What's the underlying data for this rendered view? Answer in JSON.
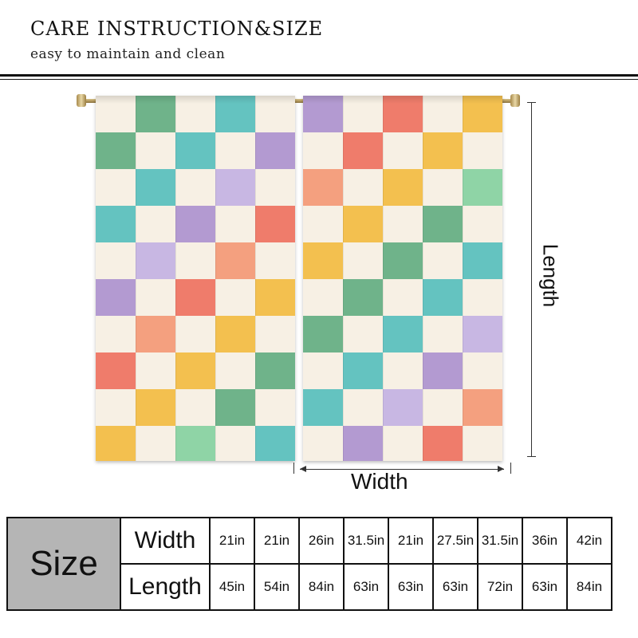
{
  "header": {
    "title": "CARE INSTRUCTION&SIZE",
    "subtitle": "easy to maintain and clean"
  },
  "colors": {
    "cream": "#f7f0e4",
    "green": "#6fb38a",
    "teal": "#64c3c0",
    "purple": "#b39ad1",
    "coral": "#ef7c6b",
    "peach": "#f4a07f",
    "yellow": "#f3c04f",
    "lavender": "#c8b7e3",
    "mint": "#8fd4a6"
  },
  "curtains": [
    {
      "panel": "left",
      "rows": [
        [
          "cream",
          "green",
          "cream",
          "teal",
          "cream"
        ],
        [
          "green",
          "cream",
          "teal",
          "cream",
          "purple"
        ],
        [
          "cream",
          "teal",
          "cream",
          "lavender",
          "cream"
        ],
        [
          "teal",
          "cream",
          "purple",
          "cream",
          "coral"
        ],
        [
          "cream",
          "lavender",
          "cream",
          "peach",
          "cream"
        ],
        [
          "purple",
          "cream",
          "coral",
          "cream",
          "yellow"
        ],
        [
          "cream",
          "peach",
          "cream",
          "yellow",
          "cream"
        ],
        [
          "coral",
          "cream",
          "yellow",
          "cream",
          "green"
        ],
        [
          "cream",
          "yellow",
          "cream",
          "green",
          "cream"
        ],
        [
          "yellow",
          "cream",
          "mint",
          "cream",
          "teal"
        ]
      ]
    },
    {
      "panel": "right",
      "rows": [
        [
          "purple",
          "cream",
          "coral",
          "cream",
          "yellow"
        ],
        [
          "cream",
          "coral",
          "cream",
          "yellow",
          "cream"
        ],
        [
          "peach",
          "cream",
          "yellow",
          "cream",
          "mint"
        ],
        [
          "cream",
          "yellow",
          "cream",
          "green",
          "cream"
        ],
        [
          "yellow",
          "cream",
          "green",
          "cream",
          "teal"
        ],
        [
          "cream",
          "green",
          "cream",
          "teal",
          "cream"
        ],
        [
          "green",
          "cream",
          "teal",
          "cream",
          "lavender"
        ],
        [
          "cream",
          "teal",
          "cream",
          "purple",
          "cream"
        ],
        [
          "teal",
          "cream",
          "lavender",
          "cream",
          "peach"
        ],
        [
          "cream",
          "purple",
          "cream",
          "coral",
          "cream"
        ]
      ]
    }
  ],
  "dimensions": {
    "length_label": "Length",
    "width_label": "Width"
  },
  "size_table": {
    "label": "Size",
    "width_label": "Width",
    "length_label": "Length",
    "widths": [
      "21in",
      "21in",
      "26in",
      "31.5in",
      "21in",
      "27.5in",
      "31.5in",
      "36in",
      "42in"
    ],
    "lengths": [
      "45in",
      "54in",
      "84in",
      "63in",
      "63in",
      "63in",
      "72in",
      "63in",
      "84in"
    ]
  }
}
